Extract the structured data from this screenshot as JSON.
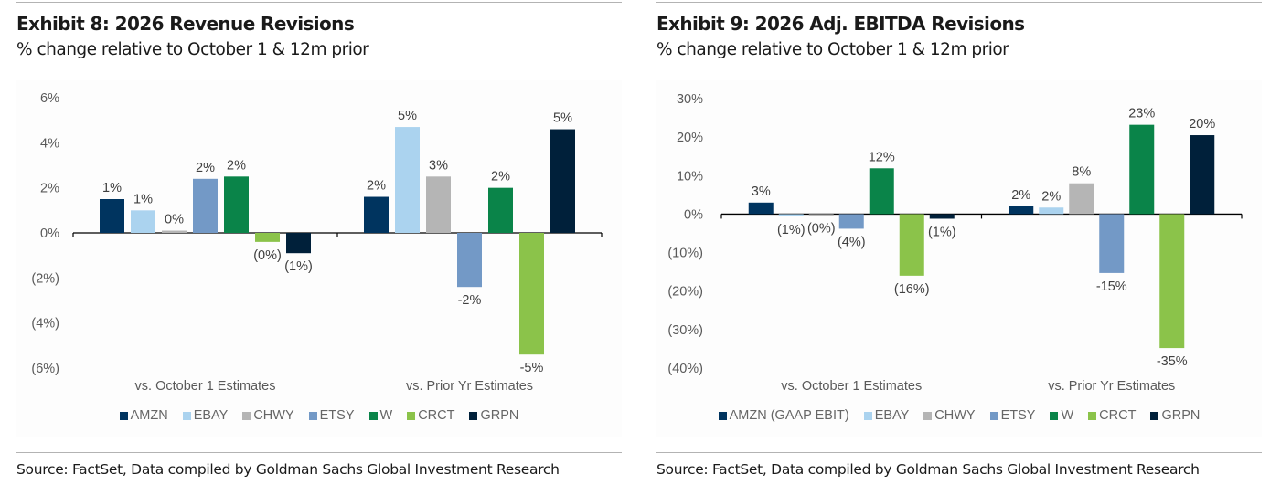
{
  "exhibits": [
    {
      "title": "Exhibit 8: 2026 Revenue Revisions",
      "subtitle": "% change relative to October 1 & 12m prior",
      "source": "Source: FactSet, Data compiled by Goldman Sachs Global Investment Research"
    },
    {
      "title": "Exhibit 9: 2026 Adj. EBITDA Revisions",
      "subtitle": "% change relative to October 1 & 12m prior",
      "source": "Source: FactSet, Data compiled by Goldman Sachs Global Investment Research"
    }
  ],
  "colors": {
    "AMZN": "#00345f",
    "EBAY": "#abd3ef",
    "CHWY": "#b5b5b5",
    "ETSY": "#7399c6",
    "W": "#0a8449",
    "CRCT": "#8bc34a",
    "GRPN": "#00203a",
    "axis_text": "#595959",
    "label_text": "#404040"
  },
  "chart_data": [
    {
      "type": "bar",
      "title": "Exhibit 8: 2026 Revenue Revisions",
      "subtitle": "% change relative to October 1 & 12m prior",
      "xlabel": "",
      "ylabel": "",
      "categories": [
        "vs. October 1 Estimates",
        "vs. Prior Yr Estimates"
      ],
      "ylim": [
        -6,
        6
      ],
      "yticks": [
        6,
        4,
        2,
        0,
        -2,
        -4,
        -6
      ],
      "ytick_labels": [
        "6%",
        "4%",
        "2%",
        "0%",
        "(2%)",
        "(4%)",
        "(6%)"
      ],
      "grid": false,
      "legend_position": "bottom",
      "series": [
        {
          "name": "AMZN",
          "color_key": "AMZN",
          "values": [
            1.5,
            1.6
          ],
          "labels": [
            "1%",
            "2%"
          ]
        },
        {
          "name": "EBAY",
          "color_key": "EBAY",
          "values": [
            1.0,
            4.7
          ],
          "labels": [
            "1%",
            "5%"
          ]
        },
        {
          "name": "CHWY",
          "color_key": "CHWY",
          "values": [
            0.1,
            2.5
          ],
          "labels": [
            "0%",
            "3%"
          ]
        },
        {
          "name": "ETSY",
          "color_key": "ETSY",
          "values": [
            2.4,
            -2.4
          ],
          "labels": [
            "2%",
            "-2%"
          ]
        },
        {
          "name": "W",
          "color_key": "W",
          "values": [
            2.5,
            2.0
          ],
          "labels": [
            "2%",
            "2%"
          ]
        },
        {
          "name": "CRCT",
          "color_key": "CRCT",
          "values": [
            -0.4,
            -5.4
          ],
          "labels": [
            "(0%)",
            "-5%"
          ]
        },
        {
          "name": "GRPN",
          "color_key": "GRPN",
          "values": [
            -0.9,
            4.6
          ],
          "labels": [
            "(1%)",
            "5%"
          ]
        }
      ]
    },
    {
      "type": "bar",
      "title": "Exhibit 9: 2026 Adj. EBITDA Revisions",
      "subtitle": "% change relative to October 1 & 12m prior",
      "xlabel": "",
      "ylabel": "",
      "categories": [
        "vs. October 1 Estimates",
        "vs. Prior Yr Estimates"
      ],
      "ylim": [
        -40,
        30
      ],
      "yticks": [
        30,
        20,
        10,
        0,
        -10,
        -20,
        -30,
        -40
      ],
      "ytick_labels": [
        "30%",
        "20%",
        "10%",
        "0%",
        "(10%)",
        "(20%)",
        "(30%)",
        "(40%)"
      ],
      "grid": false,
      "legend_position": "bottom",
      "series": [
        {
          "name": "AMZN (GAAP EBIT)",
          "color_key": "AMZN",
          "values": [
            3.0,
            2.0
          ],
          "labels": [
            "3%",
            "2%"
          ]
        },
        {
          "name": "EBAY",
          "color_key": "EBAY",
          "values": [
            -0.6,
            1.7
          ],
          "labels": [
            "(1%)",
            "2%"
          ]
        },
        {
          "name": "CHWY",
          "color_key": "CHWY",
          "values": [
            -0.3,
            8.0
          ],
          "labels": [
            "(0%)",
            "8%"
          ]
        },
        {
          "name": "ETSY",
          "color_key": "ETSY",
          "values": [
            -3.8,
            -15.3
          ],
          "labels": [
            "(4%)",
            "-15%"
          ]
        },
        {
          "name": "W",
          "color_key": "W",
          "values": [
            11.9,
            23.2
          ],
          "labels": [
            "12%",
            "23%"
          ]
        },
        {
          "name": "CRCT",
          "color_key": "CRCT",
          "values": [
            -16.0,
            -34.8
          ],
          "labels": [
            "(16%)",
            "-35%"
          ]
        },
        {
          "name": "GRPN",
          "color_key": "GRPN",
          "values": [
            -1.2,
            20.5
          ],
          "labels": [
            "(1%)",
            "20%"
          ]
        }
      ]
    }
  ]
}
